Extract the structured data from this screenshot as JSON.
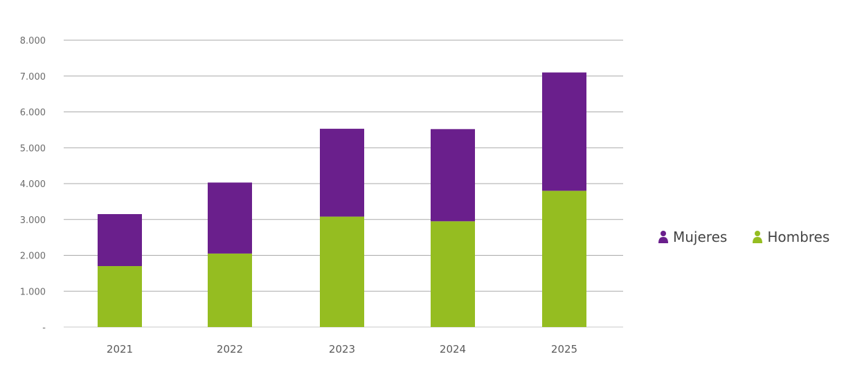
{
  "chart_data": {
    "type": "bar",
    "stacked": true,
    "categories": [
      "2021",
      "2022",
      "2023",
      "2024",
      "2025"
    ],
    "series": [
      {
        "name": "Hombres",
        "color": "#95bd21",
        "values": [
          1700,
          2050,
          3080,
          2950,
          3800
        ]
      },
      {
        "name": "Mujeres",
        "color": "#6a1f8c",
        "values": [
          1450,
          1980,
          2450,
          2570,
          3300
        ]
      }
    ],
    "y_ticks": [
      {
        "value": 0,
        "label": "-"
      },
      {
        "value": 1000,
        "label": "1.000"
      },
      {
        "value": 2000,
        "label": "2.000"
      },
      {
        "value": 3000,
        "label": "3.000"
      },
      {
        "value": 4000,
        "label": "4.000"
      },
      {
        "value": 5000,
        "label": "5.000"
      },
      {
        "value": 6000,
        "label": "6.000"
      },
      {
        "value": 7000,
        "label": "7.000"
      },
      {
        "value": 8000,
        "label": "8.000"
      }
    ],
    "ylim": [
      0,
      8000
    ],
    "grid": true,
    "legend_position": "right",
    "title": "",
    "xlabel": "",
    "ylabel": ""
  },
  "legend": {
    "items": [
      {
        "label": "Mujeres",
        "color": "#6a1f8c",
        "icon": "person-icon"
      },
      {
        "label": "Hombres",
        "color": "#95bd21",
        "icon": "person-icon"
      }
    ]
  }
}
